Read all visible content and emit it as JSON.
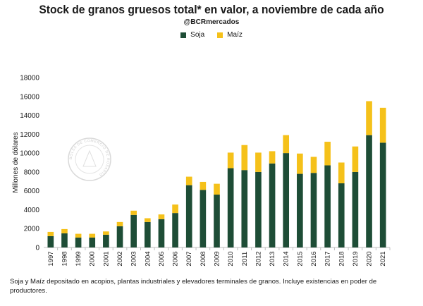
{
  "title": "Stock de granos gruesos total* en valor, a noviembre de cada año",
  "subtitle": "@BCRmercados",
  "footnote": "Soja y Maíz depositado en acopios, plantas industriales y elevadores terminales de granos. Incluye existencias en poder de productores.",
  "watermark": "BOLSA DE COMERCIO DE ROSARIO",
  "colors": {
    "soja": "#1e4d36",
    "maiz": "#f5c11a"
  },
  "chart_data": {
    "type": "bar",
    "stacked": true,
    "categories": [
      "1997",
      "1998",
      "1999",
      "2000",
      "2001",
      "2002",
      "2003",
      "2004",
      "2005",
      "2006",
      "2007",
      "2008",
      "2009",
      "2010",
      "2011",
      "2012",
      "2013",
      "2014",
      "2015",
      "2016",
      "2017",
      "2018",
      "2019",
      "2020",
      "2021"
    ],
    "series": [
      {
        "name": "Soja",
        "values": [
          1200,
          1500,
          1050,
          1050,
          1350,
          2250,
          3450,
          2700,
          3000,
          3650,
          6600,
          6100,
          5600,
          8400,
          8200,
          8000,
          8900,
          10000,
          7800,
          7900,
          8700,
          6800,
          8000,
          11900,
          11100
        ]
      },
      {
        "name": "Maíz",
        "values": [
          450,
          450,
          400,
          400,
          350,
          450,
          450,
          400,
          500,
          900,
          900,
          850,
          1150,
          1650,
          2650,
          2050,
          1300,
          1900,
          2150,
          1700,
          2500,
          2200,
          2700,
          3600,
          3700
        ]
      }
    ],
    "ylabel": "Millones de dólares",
    "ylim": [
      0,
      18000
    ],
    "yticks": [
      0,
      2000,
      4000,
      6000,
      8000,
      10000,
      12000,
      14000,
      16000,
      18000
    ],
    "legend_position": "top-center",
    "grid": false
  }
}
